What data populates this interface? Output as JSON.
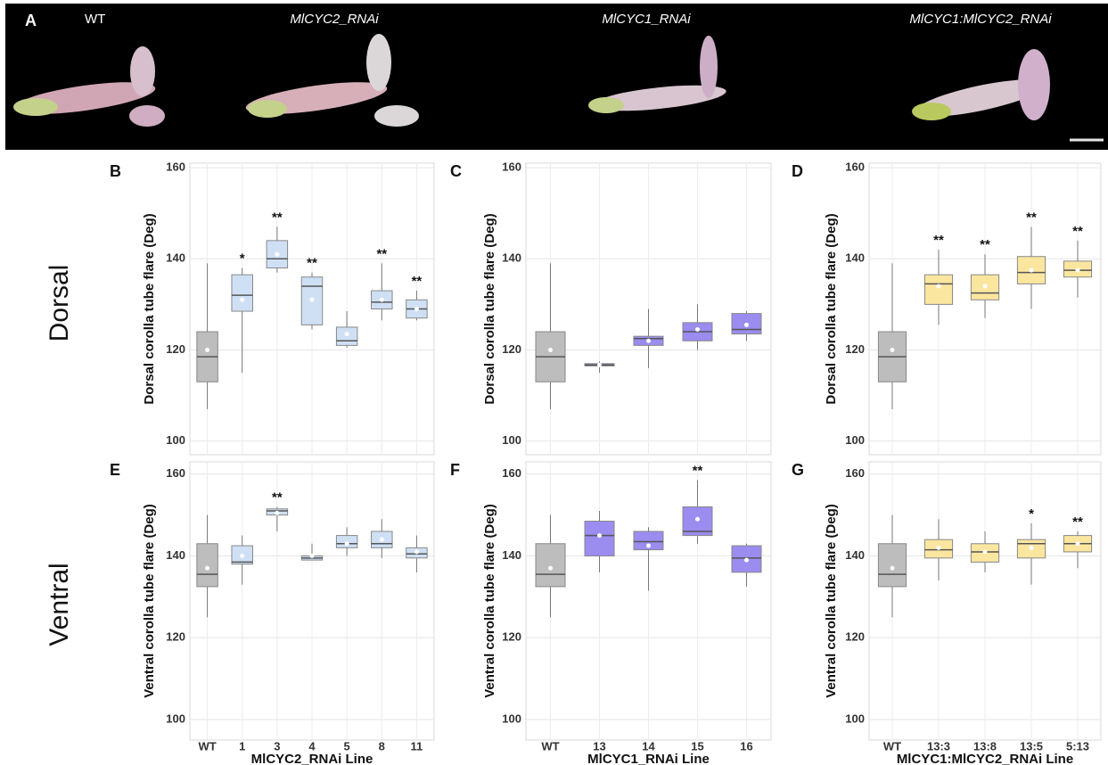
{
  "panel_a": {
    "label": "A",
    "captions": [
      "WT",
      "MlCYC2_RNAi",
      "MlCYC1_RNAi",
      "MlCYC1:MlCYC2_RNAi"
    ]
  },
  "row_labels": [
    "Dorsal",
    "Ventral"
  ],
  "chart_data": [
    {
      "type": "box",
      "panel_label": "B",
      "ylabel": "Dorsal corolla tube flare (Deg)",
      "ylim": [
        97,
        161
      ],
      "yticks": [
        100,
        120,
        140,
        160
      ],
      "grid": true,
      "colors": [
        "#bdbdbd",
        "#cfe0f5",
        "#cfe0f5",
        "#cfe0f5",
        "#cfe0f5",
        "#cfe0f5",
        "#cfe0f5"
      ],
      "boxes": [
        {
          "min": 107,
          "q1": 113,
          "median": 118.5,
          "q3": 124,
          "max": 139,
          "mean": 120
        },
        {
          "min": 115,
          "q1": 128.5,
          "median": 132,
          "q3": 136.5,
          "max": 138,
          "mean": 131
        },
        {
          "min": 137,
          "q1": 138,
          "median": 140,
          "q3": 144,
          "max": 147,
          "mean": 141
        },
        {
          "min": 124.5,
          "q1": 125.5,
          "median": 134,
          "q3": 136,
          "max": 137,
          "mean": 131
        },
        {
          "min": 120.5,
          "q1": 121,
          "median": 122,
          "q3": 125,
          "max": 128.5,
          "mean": 123.5
        },
        {
          "min": 126.5,
          "q1": 129,
          "median": 130.5,
          "q3": 133,
          "max": 139,
          "mean": 131
        },
        {
          "min": 126.5,
          "q1": 127,
          "median": 129,
          "q3": 131,
          "max": 133,
          "mean": 129
        }
      ],
      "annotations": [
        null,
        "*",
        "**",
        "**",
        null,
        "**",
        "**"
      ]
    },
    {
      "type": "box",
      "panel_label": "C",
      "ylabel": "Dorsal corolla tube flare (Deg)",
      "ylim": [
        97,
        161
      ],
      "yticks": [
        100,
        120,
        140,
        160
      ],
      "grid": true,
      "colors": [
        "#bdbdbd",
        "#9b8cf0",
        "#9b8cf0",
        "#9b8cf0",
        "#9b8cf0"
      ],
      "boxes": [
        {
          "min": 107,
          "q1": 113,
          "median": 118.5,
          "q3": 124,
          "max": 139,
          "mean": 120
        },
        {
          "min": 115,
          "q1": 116.5,
          "median": 116.7,
          "q3": 117,
          "max": 117.5,
          "mean": 116.7
        },
        {
          "min": 116,
          "q1": 121,
          "median": 122.5,
          "q3": 123,
          "max": 129,
          "mean": 122
        },
        {
          "min": 120,
          "q1": 122,
          "median": 124,
          "q3": 126,
          "max": 130,
          "mean": 124.5
        },
        {
          "min": 122,
          "q1": 123.5,
          "median": 124.5,
          "q3": 128,
          "max": 128.5,
          "mean": 125.5
        }
      ]
    },
    {
      "type": "box",
      "panel_label": "D",
      "ylabel": "Dorsal corolla tube flare (Deg)",
      "ylim": [
        97,
        161
      ],
      "yticks": [
        100,
        120,
        140,
        160
      ],
      "grid": true,
      "colors": [
        "#bdbdbd",
        "#fbe6a0",
        "#fbe6a0",
        "#fbe6a0",
        "#fbe6a0"
      ],
      "boxes": [
        {
          "min": 107,
          "q1": 113,
          "median": 118.5,
          "q3": 124,
          "max": 139,
          "mean": 120
        },
        {
          "min": 125.5,
          "q1": 130,
          "median": 134.5,
          "q3": 136.5,
          "max": 142,
          "mean": 134
        },
        {
          "min": 127,
          "q1": 131,
          "median": 132.5,
          "q3": 136.5,
          "max": 141,
          "mean": 134
        },
        {
          "min": 129,
          "q1": 134.5,
          "median": 137,
          "q3": 140.5,
          "max": 147,
          "mean": 137.5
        },
        {
          "min": 131.5,
          "q1": 136,
          "median": 137.5,
          "q3": 139.5,
          "max": 144,
          "mean": 137.5
        }
      ],
      "annotations": [
        null,
        "**",
        "**",
        "**",
        "**"
      ]
    },
    {
      "type": "box",
      "panel_label": "E",
      "ylabel": "Ventral corolla tube flare (Deg)",
      "xlabel": "MlCYC2_RNAi Line",
      "ylim": [
        95,
        163
      ],
      "yticks": [
        100,
        120,
        140,
        160
      ],
      "grid": true,
      "categories": [
        "WT",
        "1",
        "3",
        "4",
        "5",
        "8",
        "11"
      ],
      "colors": [
        "#bdbdbd",
        "#cfe0f5",
        "#cfe0f5",
        "#cfe0f5",
        "#cfe0f5",
        "#cfe0f5",
        "#cfe0f5"
      ],
      "boxes": [
        {
          "min": 125,
          "q1": 132.5,
          "median": 135.5,
          "q3": 143,
          "max": 150,
          "mean": 137
        },
        {
          "min": 133,
          "q1": 138,
          "median": 138.5,
          "q3": 142.5,
          "max": 145,
          "mean": 140
        },
        {
          "min": 146,
          "q1": 150,
          "median": 151,
          "q3": 151.5,
          "max": 152,
          "mean": 150.5
        },
        {
          "min": 139,
          "q1": 139,
          "median": 139.5,
          "q3": 140,
          "max": 143,
          "mean": 140
        },
        {
          "min": 140,
          "q1": 142,
          "median": 143,
          "q3": 145,
          "max": 147,
          "mean": 143
        },
        {
          "min": 139.5,
          "q1": 142,
          "median": 143,
          "q3": 146,
          "max": 149,
          "mean": 144
        },
        {
          "min": 136,
          "q1": 139.5,
          "median": 140.5,
          "q3": 142,
          "max": 145,
          "mean": 141
        }
      ],
      "annotations": [
        null,
        null,
        "**",
        null,
        null,
        null,
        null
      ]
    },
    {
      "type": "box",
      "panel_label": "F",
      "ylabel": "Ventral corolla tube flare (Deg)",
      "xlabel": "MlCYC1_RNAi Line",
      "ylim": [
        95,
        163
      ],
      "yticks": [
        100,
        120,
        140,
        160
      ],
      "grid": true,
      "categories": [
        "WT",
        "13",
        "14",
        "15",
        "16"
      ],
      "colors": [
        "#bdbdbd",
        "#9b8cf0",
        "#9b8cf0",
        "#9b8cf0",
        "#9b8cf0"
      ],
      "boxes": [
        {
          "min": 125,
          "q1": 132.5,
          "median": 135.5,
          "q3": 143,
          "max": 150,
          "mean": 137
        },
        {
          "min": 136,
          "q1": 140,
          "median": 145,
          "q3": 148.5,
          "max": 151,
          "mean": 145
        },
        {
          "min": 131.5,
          "q1": 141.5,
          "median": 143.5,
          "q3": 146,
          "max": 147,
          "mean": 142.5
        },
        {
          "min": 143,
          "q1": 145,
          "median": 146,
          "q3": 152,
          "max": 158.5,
          "mean": 149
        },
        {
          "min": 132.5,
          "q1": 136,
          "median": 139.5,
          "q3": 142.5,
          "max": 143,
          "mean": 139
        }
      ],
      "annotations": [
        null,
        null,
        null,
        "**",
        null
      ]
    },
    {
      "type": "box",
      "panel_label": "G",
      "ylabel": "Ventral corolla tube flare (Deg)",
      "xlabel": "MlCYC1:MlCYC2_RNAi Line",
      "ylim": [
        95,
        163
      ],
      "yticks": [
        100,
        120,
        140,
        160
      ],
      "grid": true,
      "categories": [
        "WT",
        "13:3",
        "13:8",
        "13:5",
        "5:13"
      ],
      "colors": [
        "#bdbdbd",
        "#fbe6a0",
        "#fbe6a0",
        "#fbe6a0",
        "#fbe6a0"
      ],
      "boxes": [
        {
          "min": 125,
          "q1": 132.5,
          "median": 135.5,
          "q3": 143,
          "max": 150,
          "mean": 137
        },
        {
          "min": 134,
          "q1": 139.5,
          "median": 141.5,
          "q3": 144,
          "max": 149,
          "mean": 142
        },
        {
          "min": 136,
          "q1": 138.5,
          "median": 141,
          "q3": 143,
          "max": 146,
          "mean": 141
        },
        {
          "min": 133,
          "q1": 139.5,
          "median": 143,
          "q3": 144,
          "max": 148,
          "mean": 142
        },
        {
          "min": 137,
          "q1": 141,
          "median": 143,
          "q3": 145,
          "max": 146,
          "mean": 143
        }
      ],
      "annotations": [
        null,
        null,
        null,
        "*",
        "**"
      ]
    }
  ]
}
